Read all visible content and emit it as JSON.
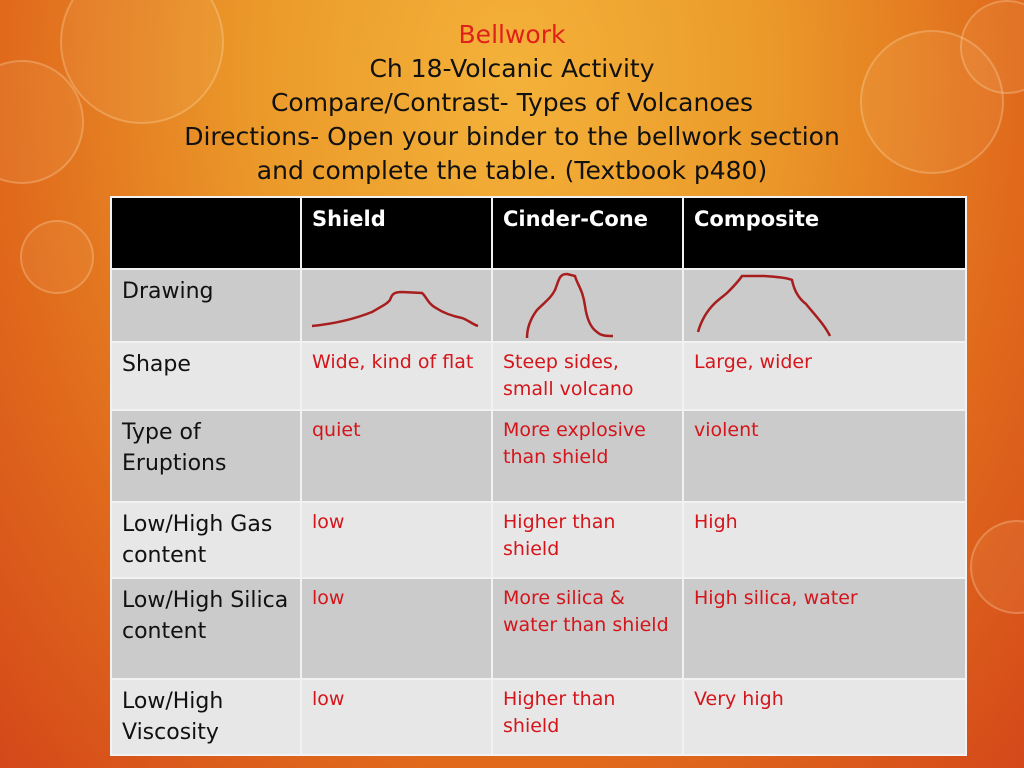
{
  "title": {
    "line1": "Bellwork",
    "line2": "Ch 18-Volcanic Activity",
    "line3": "Compare/Contrast- Types of Volcanoes",
    "line4": "Directions- Open your binder to the bellwork section",
    "line5": "and complete the table. (Textbook p480)"
  },
  "colors": {
    "accent": "#e0201b",
    "answer_text": "#d4151b",
    "header_bg": "#000000"
  },
  "table": {
    "headers": [
      "",
      "Shield",
      "Cinder-Cone",
      "Composite"
    ],
    "rows": [
      {
        "label": "Drawing",
        "cells": [
          "shield-volcano-sketch",
          "cinder-cone-sketch",
          "composite-volcano-sketch"
        ]
      },
      {
        "label": "Shape",
        "cells": [
          "Wide, kind of flat",
          "Steep sides, small volcano",
          "Large, wider"
        ]
      },
      {
        "label": "Type of Eruptions",
        "cells": [
          "quiet",
          "More explosive than shield",
          "violent"
        ]
      },
      {
        "label": "Low/High Gas content",
        "cells": [
          "low",
          "Higher than shield",
          "High"
        ]
      },
      {
        "label": "Low/High Silica content",
        "cells": [
          "low",
          "More silica & water than shield",
          "High silica, water"
        ]
      },
      {
        "label": "Low/High Viscosity",
        "cells": [
          "low",
          "Higher than shield",
          "Very high"
        ]
      }
    ]
  }
}
